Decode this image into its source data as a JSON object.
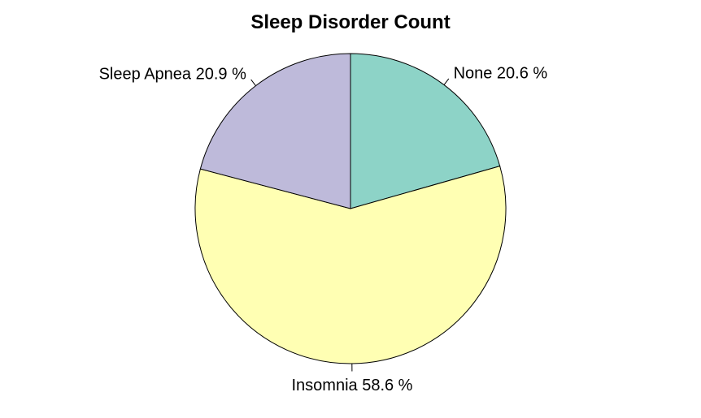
{
  "chart_data": {
    "type": "pie",
    "title": "Sleep Disorder Count",
    "start_angle_deg": 90,
    "direction": "clockwise",
    "slices": [
      {
        "label": "None",
        "percent_text": "20.6 %",
        "value": 20.6,
        "color": "#8DD3C7"
      },
      {
        "label": "Insomnia",
        "percent_text": "58.6 %",
        "value": 58.6,
        "color": "#FFFFB3"
      },
      {
        "label": "Sleep Apnea",
        "percent_text": "20.9 %",
        "value": 20.9,
        "color": "#BEBADA"
      }
    ]
  }
}
